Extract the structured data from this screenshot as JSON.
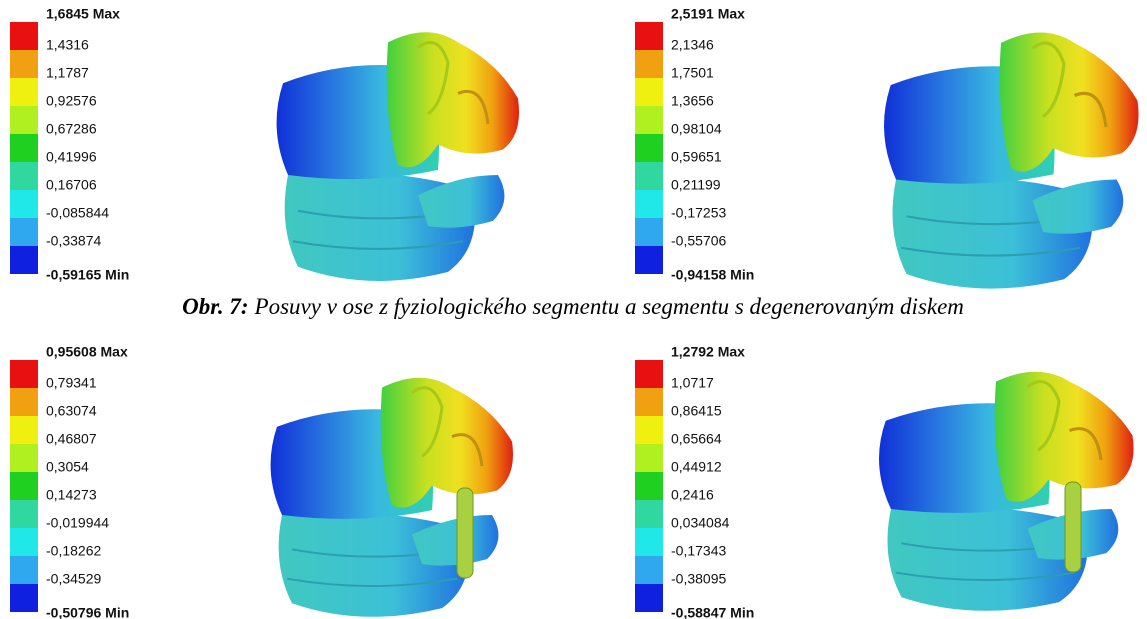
{
  "panels": [
    {
      "legend": [
        "1,6845 Max",
        "1,4316",
        "1,1787",
        "0,92576",
        "0,67286",
        "0,41996",
        "0,16706",
        "-0,085844",
        "-0,33874",
        "-0,59165 Min"
      ]
    },
    {
      "legend": [
        "2,5191 Max",
        "2,1346",
        "1,7501",
        "1,3656",
        "0,98104",
        "0,59651",
        "0,21199",
        "-0,17253",
        "-0,55706",
        "-0,94158 Min"
      ]
    },
    {
      "legend": [
        "0,95608 Max",
        "0,79341",
        "0,63074",
        "0,46807",
        "0,3054",
        "0,14273",
        "-0,019944",
        "-0,18262",
        "-0,34529",
        "-0,50796 Min"
      ]
    },
    {
      "legend": [
        "1,2792 Max",
        "1,0717",
        "0,86415",
        "0,65664",
        "0,44912",
        "0,2416",
        "0,034084",
        "-0,17343",
        "-0,38095",
        "-0,58847 Min"
      ]
    }
  ],
  "caption": {
    "label": "Obr. 7:",
    "text": "Posuvy v ose z fyziologického segmentu a segmentu s degenerovaným diskem"
  }
}
